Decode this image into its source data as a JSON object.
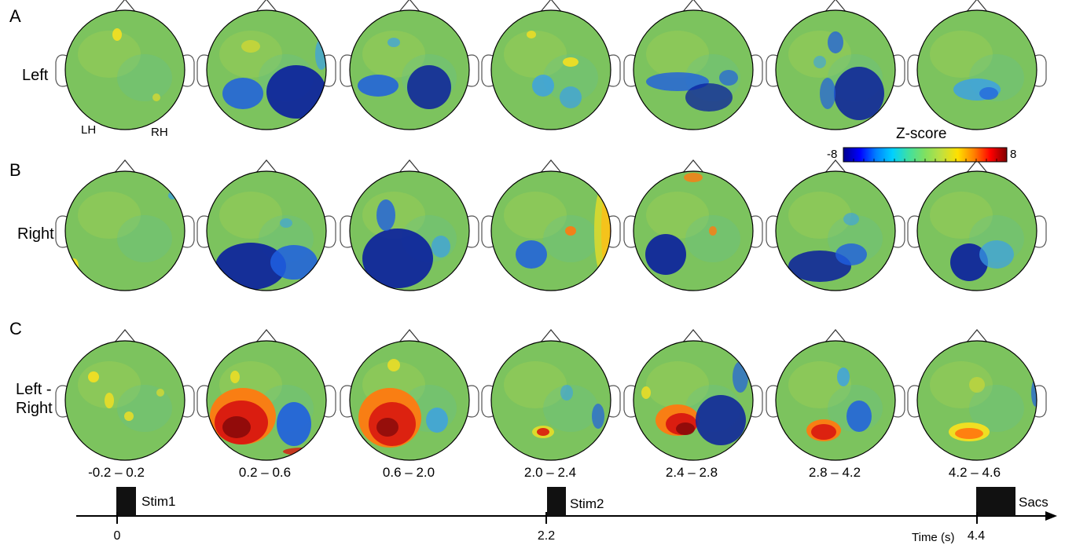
{
  "panels": [
    {
      "letter": "A",
      "label": "Left"
    },
    {
      "letter": "B",
      "label": "Right"
    },
    {
      "letter": "C",
      "label": "Left -\nRight"
    }
  ],
  "hemisphere_labels": {
    "left": "LH",
    "right": "RH"
  },
  "colorbar": {
    "title": "Z-score",
    "min_label": "-8",
    "max_label": "8",
    "colormap": [
      "#00008f",
      "#0000ff",
      "#0080ff",
      "#00d0ff",
      "#40e0a0",
      "#80e060",
      "#c0e040",
      "#ffe000",
      "#ff8000",
      "#ff0000",
      "#800000"
    ]
  },
  "time_windows": [
    "-0.2 – 0.2",
    "0.2 – 0.6",
    "0.6 – 2.0",
    "2.0 – 2.4",
    "2.4 – 2.8",
    "2.8 – 4.2",
    "4.2 – 4.6"
  ],
  "timeline": {
    "events": [
      {
        "label": "Stim1",
        "time_label": "0"
      },
      {
        "label": "Stim2",
        "time_label": "2.2"
      },
      {
        "label": "Sacs",
        "time_label": "4.4"
      }
    ],
    "axis_label": "Time (s)"
  },
  "colors": {
    "background": "#7cc35e",
    "outline": "#000000"
  }
}
